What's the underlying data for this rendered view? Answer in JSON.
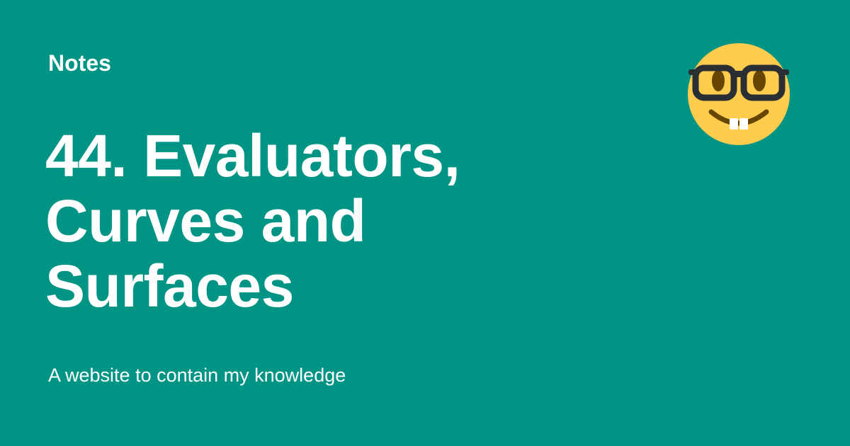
{
  "card": {
    "site_name": "Notes",
    "title_lines": [
      "44. Evaluators,",
      "Curves and",
      "Surfaces"
    ],
    "tagline": "A website to contain my knowledge",
    "logo_icon": "nerd-face-emoji-icon"
  },
  "colors": {
    "background": "#009485",
    "text": "#ffffff",
    "emoji_face": "#FFCC4D",
    "emoji_glasses": "#292F33",
    "emoji_eyes": "#664500"
  }
}
